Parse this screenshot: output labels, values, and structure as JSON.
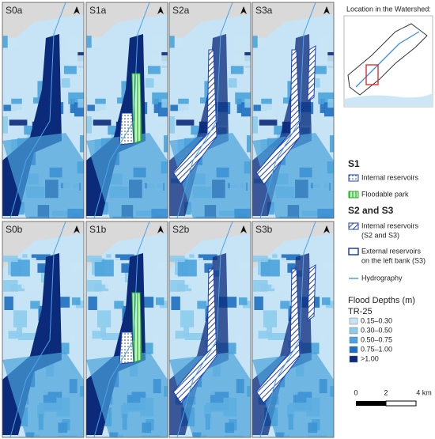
{
  "panels": [
    {
      "label": "S0a"
    },
    {
      "label": "S1a"
    },
    {
      "label": "S2a"
    },
    {
      "label": "S3a"
    },
    {
      "label": "S0b"
    },
    {
      "label": "S1b"
    },
    {
      "label": "S2b"
    },
    {
      "label": "S3b"
    }
  ],
  "inset": {
    "title": "Location in the Watershed:"
  },
  "legend": {
    "s1_heading": "S1",
    "s1_items": [
      {
        "lines": [
          "Internal reservoirs"
        ]
      },
      {
        "lines": [
          "Floodable park"
        ]
      }
    ],
    "s23_heading": "S2 and S3",
    "s23_items": [
      {
        "lines": [
          "Internal reservoirs",
          "(S2 and S3)"
        ]
      },
      {
        "lines": [
          "External reservoirs",
          "on the left bank (S3)"
        ]
      },
      {
        "lines": [
          "Hydrography"
        ]
      }
    ]
  },
  "flood_depths": {
    "title": "Flood Depths (m)",
    "subtitle": "TR-25",
    "classes": [
      {
        "label": "0.15–0.30",
        "color": "#c6e4f5"
      },
      {
        "label": "0.30–0.50",
        "color": "#8ccbec"
      },
      {
        "label": "0.50–0.75",
        "color": "#4aa3dc"
      },
      {
        "label": "0.75–1.00",
        "color": "#1f6fc0"
      },
      {
        "label": ">1.00",
        "color": "#0b2a7a"
      }
    ]
  },
  "scale_bar": {
    "labels": [
      "0",
      "2",
      "4 km"
    ]
  }
}
